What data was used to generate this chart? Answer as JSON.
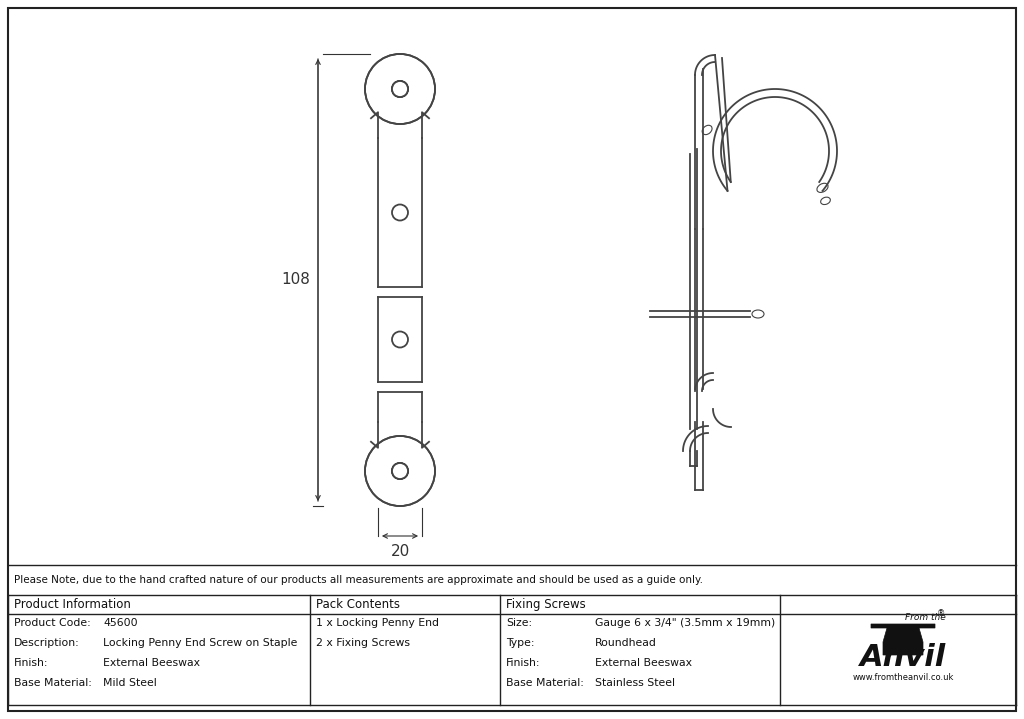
{
  "bg_color": "#ffffff",
  "lc": "#444444",
  "lw": 1.3,
  "thin_lw": 0.8,
  "note_text": "Please Note, due to the hand crafted nature of our products all measurements are approximate and should be used as a guide only.",
  "dim_108": "108",
  "dim_20": "20",
  "table": {
    "col1_header": "Product Information",
    "col1_rows": [
      [
        "Product Code:",
        "45600"
      ],
      [
        "Description:",
        "Locking Penny End Screw on Staple"
      ],
      [
        "Finish:",
        "External Beeswax"
      ],
      [
        "Base Material:",
        "Mild Steel"
      ]
    ],
    "col2_header": "Pack Contents",
    "col2_rows": [
      "1 x Locking Penny End",
      "2 x Fixing Screws"
    ],
    "col3_header": "Fixing Screws",
    "col3_rows": [
      [
        "Size:",
        "Gauge 6 x 3/4\" (3.5mm x 19mm)"
      ],
      [
        "Type:",
        "Roundhead"
      ],
      [
        "Finish:",
        "External Beeswax"
      ],
      [
        "Base Material:",
        "Stainless Steel"
      ]
    ]
  }
}
